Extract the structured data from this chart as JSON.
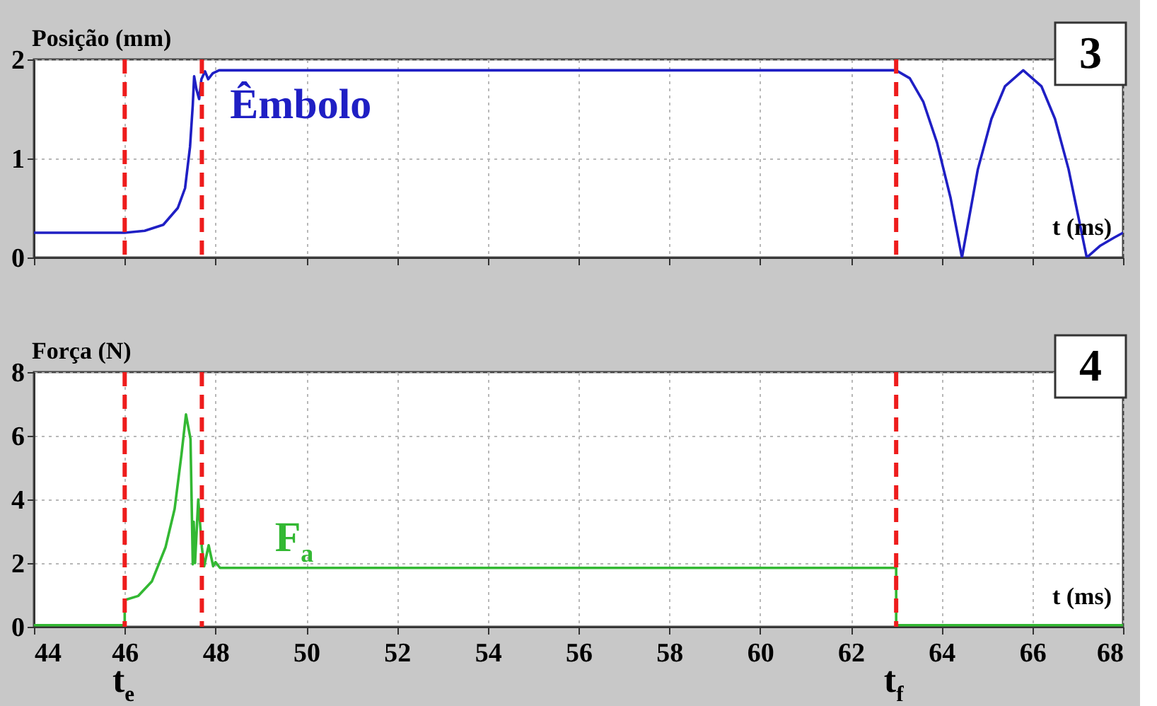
{
  "chart_data": [
    {
      "type": "line",
      "ylabel": "Posição (mm)",
      "xlabel": "t (ms)",
      "series": [
        {
          "name": "Êmbolo",
          "color": "#1f1fc4",
          "x": [
            44,
            46,
            46.44,
            46.85,
            47.17,
            47.33,
            47.44,
            47.5,
            47.53,
            47.58,
            47.64,
            47.69,
            47.77,
            47.84,
            47.94,
            48.08,
            63.0,
            63.3,
            63.6,
            63.9,
            64.2,
            64.45,
            64.8,
            65.1,
            65.4,
            65.8,
            66.2,
            66.5,
            66.8,
            67.2,
            67.5,
            67.8,
            68
          ],
          "values": [
            0.25,
            0.25,
            0.27,
            0.33,
            0.5,
            0.7,
            1.12,
            1.54,
            1.83,
            1.7,
            1.6,
            1.8,
            1.88,
            1.8,
            1.86,
            1.89,
            1.89,
            1.81,
            1.57,
            1.16,
            0.6,
            0,
            0.89,
            1.4,
            1.73,
            1.89,
            1.73,
            1.4,
            0.89,
            0,
            0.12,
            0.2,
            0.25
          ]
        }
      ],
      "xlim": [
        44,
        68
      ],
      "xticks": [
        44,
        46,
        48,
        50,
        52,
        54,
        56,
        58,
        60,
        62,
        64,
        66,
        68
      ],
      "ylim": [
        0,
        2
      ],
      "yticks": [
        0,
        1,
        2
      ],
      "grid": true,
      "tick_labels": "y",
      "line_style": "solid",
      "ref_lines": [
        {
          "axis": "x",
          "value": 46,
          "label": null,
          "color": "#ee1c1c",
          "line_style": "dashed"
        },
        {
          "axis": "x",
          "value": 47.7,
          "label": null,
          "color": "#ee1c1c",
          "line_style": "dashed"
        },
        {
          "axis": "x",
          "value": 63,
          "label": null,
          "color": "#ee1c1c",
          "line_style": "dashed"
        }
      ],
      "annotations": [
        "3"
      ]
    },
    {
      "type": "line",
      "ylabel": "Força (N)",
      "xlabel": "t (ms)",
      "series": [
        {
          "name": "F$_{a}$",
          "color": "#33b833",
          "x": [
            44,
            46,
            46,
            46.3,
            46.6,
            46.9,
            47.1,
            47.25,
            47.35,
            47.45,
            47.5,
            47.52,
            47.55,
            47.62,
            47.7,
            47.75,
            47.85,
            47.95,
            48.0,
            48.1,
            63,
            63,
            68
          ],
          "values": [
            0.05,
            0.05,
            0.84,
            0.97,
            1.43,
            2.5,
            3.7,
            5.4,
            6.67,
            5.9,
            1.96,
            3.3,
            2.0,
            4.0,
            2.5,
            1.9,
            2.56,
            1.9,
            2.03,
            1.85,
            1.85,
            0.05,
            0.05
          ]
        }
      ],
      "xlim": [
        44,
        68
      ],
      "xticks": [
        44,
        46,
        48,
        50,
        52,
        54,
        56,
        58,
        60,
        62,
        64,
        66,
        68
      ],
      "ylim": [
        0,
        8
      ],
      "yticks": [
        0,
        2,
        4,
        6,
        8
      ],
      "grid": true,
      "line_style": "solid",
      "ref_lines": [
        {
          "axis": "x",
          "value": 46,
          "label": "t$_{e}$",
          "color": "#ee1c1c",
          "line_style": "dashed"
        },
        {
          "axis": "x",
          "value": 47.7,
          "label": null,
          "color": "#ee1c1c",
          "line_style": "dashed"
        },
        {
          "axis": "x",
          "value": 63,
          "label": "t$_{f}$",
          "color": "#ee1c1c",
          "line_style": "dashed"
        }
      ],
      "annotations": [
        "4"
      ]
    }
  ]
}
